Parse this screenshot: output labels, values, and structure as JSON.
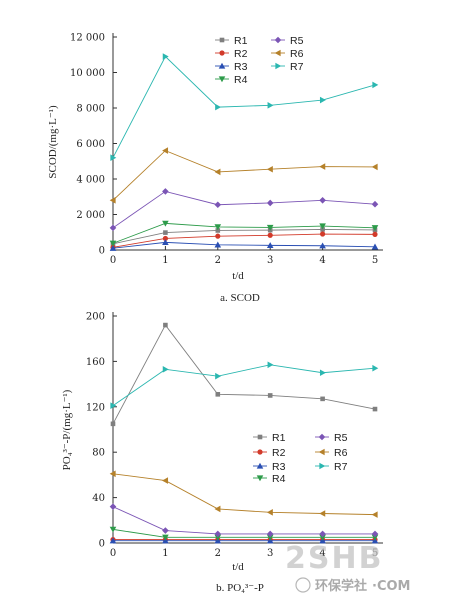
{
  "chart_data": [
    {
      "type": "line",
      "caption": "a. SCOD",
      "xlabel": "t/d",
      "ylabel": "SCOD/(mg·L⁻¹)",
      "x": [
        0,
        1,
        2,
        3,
        4,
        5
      ],
      "xlim": [
        0,
        5
      ],
      "ylim": [
        0,
        12000
      ],
      "yticks": [
        0,
        2000,
        4000,
        6000,
        8000,
        10000,
        12000
      ],
      "ytick_labels": [
        "0",
        "2 000",
        "4 000",
        "6 000",
        "8 000",
        "10 000",
        "12 000"
      ],
      "series": [
        {
          "name": "R1",
          "color": "#7f7f7f",
          "marker": "square",
          "values": [
            350,
            980,
            1100,
            1120,
            1160,
            1130
          ]
        },
        {
          "name": "R2",
          "color": "#d23a2a",
          "marker": "circle",
          "values": [
            150,
            650,
            780,
            830,
            900,
            880
          ]
        },
        {
          "name": "R3",
          "color": "#2a4fb3",
          "marker": "triangle-up",
          "values": [
            100,
            430,
            290,
            260,
            240,
            180
          ]
        },
        {
          "name": "R4",
          "color": "#2d9b4a",
          "marker": "triangle-down",
          "values": [
            380,
            1500,
            1300,
            1270,
            1350,
            1250
          ]
        },
        {
          "name": "R5",
          "color": "#7b55b5",
          "marker": "diamond",
          "values": [
            1250,
            3300,
            2550,
            2650,
            2800,
            2580
          ]
        },
        {
          "name": "R6",
          "color": "#b5812a",
          "marker": "triangle-left",
          "values": [
            2800,
            5600,
            4400,
            4550,
            4700,
            4680
          ]
        },
        {
          "name": "R7",
          "color": "#2bb7b0",
          "marker": "triangle-right",
          "values": [
            5200,
            10900,
            8050,
            8150,
            8450,
            9300
          ]
        }
      ],
      "legend_position": "top-right"
    },
    {
      "type": "line",
      "caption": "b. PO₄³⁻-P",
      "xlabel": "t/d",
      "ylabel": "PO₄³⁻-P/(mg·L⁻¹)",
      "x": [
        0,
        1,
        2,
        3,
        4,
        5
      ],
      "xlim": [
        0,
        5
      ],
      "ylim": [
        0,
        200
      ],
      "yticks": [
        0,
        40,
        80,
        120,
        160,
        200
      ],
      "ytick_labels": [
        "0",
        "40",
        "80",
        "120",
        "160",
        "200"
      ],
      "series": [
        {
          "name": "R1",
          "color": "#7f7f7f",
          "marker": "square",
          "values": [
            105,
            192,
            131,
            130,
            127,
            118
          ]
        },
        {
          "name": "R2",
          "color": "#d23a2a",
          "marker": "circle",
          "values": [
            3,
            3,
            3,
            3,
            3,
            3
          ]
        },
        {
          "name": "R3",
          "color": "#2a4fb3",
          "marker": "triangle-up",
          "values": [
            2,
            2,
            2,
            2,
            2,
            2
          ]
        },
        {
          "name": "R4",
          "color": "#2d9b4a",
          "marker": "triangle-down",
          "values": [
            12,
            5,
            5,
            5,
            5,
            5
          ]
        },
        {
          "name": "R5",
          "color": "#7b55b5",
          "marker": "diamond",
          "values": [
            32,
            11,
            8,
            8,
            8,
            8
          ]
        },
        {
          "name": "R6",
          "color": "#b5812a",
          "marker": "triangle-left",
          "values": [
            61,
            55,
            30,
            27,
            26,
            25
          ]
        },
        {
          "name": "R7",
          "color": "#2bb7b0",
          "marker": "triangle-right",
          "values": [
            121,
            153,
            147,
            157,
            150,
            154
          ]
        }
      ],
      "legend_position": "middle-right"
    }
  ],
  "watermark": {
    "text": "环保学社",
    "brand": "2SHB",
    "domain": "·COM",
    "color": "#9a9a9a"
  }
}
